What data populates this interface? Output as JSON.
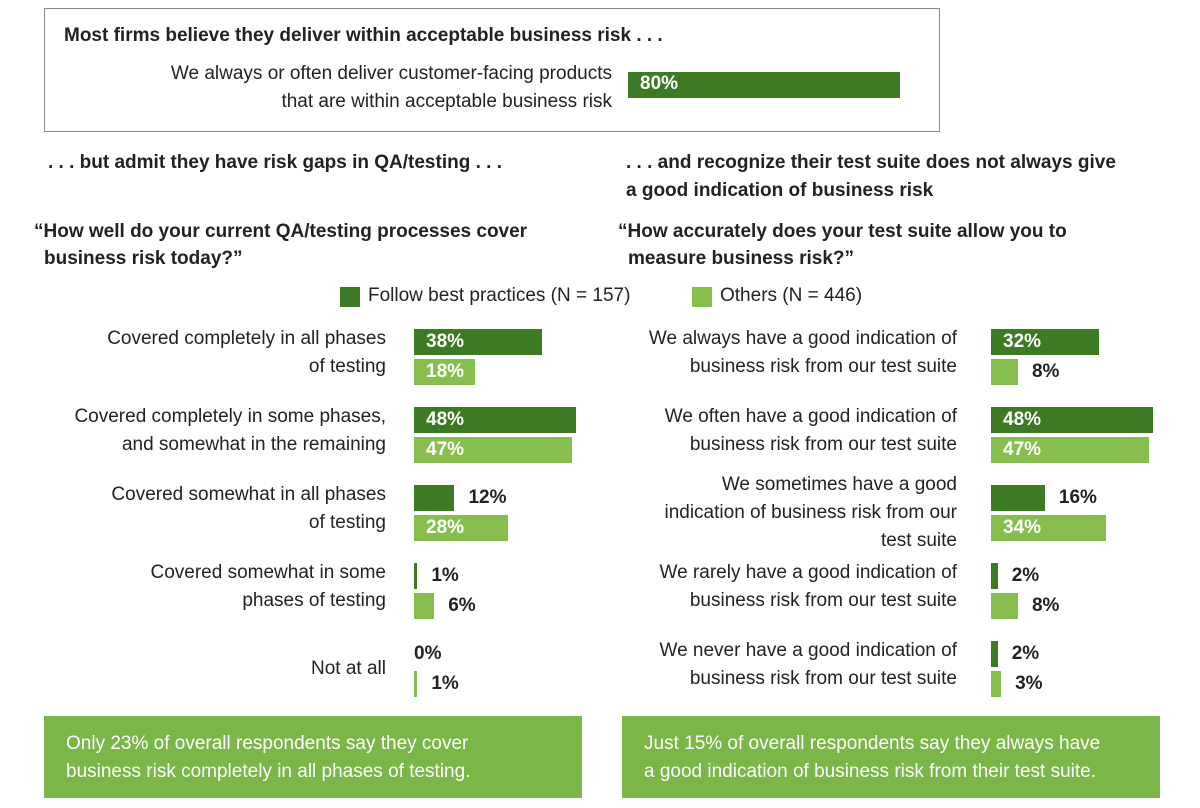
{
  "top": {
    "heading": "Most firms believe they deliver within acceptable business risk . . .",
    "label_line1": "We always or often deliver customer-facing products",
    "label_line2": "that are within acceptable business risk",
    "value_label": "80%"
  },
  "left": {
    "subheading": ". . . but admit they have risk gaps in QA/testing . . .",
    "question_line1": "“How well do your current QA/testing processes cover",
    "question_line2": "business risk today?”"
  },
  "right": {
    "subheading_line1": ". . . and recognize their test suite does not always give",
    "subheading_line2": "a good indication of business risk",
    "question_line1": "“How accurately does your test suite allow you to",
    "question_line2": "measure business risk?”"
  },
  "legend": {
    "best": "Follow best practices (N = 157)",
    "others": "Others (N = 446)"
  },
  "colors": {
    "best": "#3d7a24",
    "others": "#86bf4e",
    "callout": "#7ab648"
  },
  "callouts": {
    "left_line1": "Only 23% of overall respondents say they cover",
    "left_line2": "business risk completely in all phases of testing.",
    "right_line1": "Just 15% of overall respondents say they always have",
    "right_line2": "a good indication of business risk from their test suite."
  },
  "chart_data": [
    {
      "type": "bar",
      "orientation": "horizontal",
      "categories": [
        "We always or often deliver customer-facing products that are within acceptable business risk"
      ],
      "values": [
        80
      ]
    },
    {
      "type": "bar",
      "orientation": "horizontal",
      "categories": [
        [
          "Covered completely in all phases",
          "of testing"
        ],
        [
          "Covered completely in some phases,",
          "and somewhat in the remaining"
        ],
        [
          "Covered somewhat in all phases",
          "of testing"
        ],
        [
          "Covered somewhat in some",
          "phases of testing"
        ],
        [
          "Not at all"
        ]
      ],
      "series": [
        {
          "name": "Follow best practices (N = 157)",
          "values": [
            38,
            48,
            12,
            1,
            0
          ],
          "labels": [
            "38%",
            "48%",
            "12%",
            "1%",
            "0%"
          ]
        },
        {
          "name": "Others (N = 446)",
          "values": [
            18,
            47,
            28,
            6,
            1
          ],
          "labels": [
            "18%",
            "47%",
            "28%",
            "6%",
            "1%"
          ]
        }
      ]
    },
    {
      "type": "bar",
      "orientation": "horizontal",
      "categories": [
        [
          "We always have a good indication of",
          "business risk from our test suite"
        ],
        [
          "We often have a good indication of",
          "business risk from our test suite"
        ],
        [
          "We sometimes have a good",
          "indication of business risk from our",
          "test suite"
        ],
        [
          "We rarely have a good indication of",
          "business risk from our test suite"
        ],
        [
          "We never have a good indication of",
          "business risk from our test suite"
        ]
      ],
      "series": [
        {
          "name": "Follow best practices (N = 157)",
          "values": [
            32,
            48,
            16,
            2,
            2
          ],
          "labels": [
            "32%",
            "48%",
            "16%",
            "2%",
            "2%"
          ]
        },
        {
          "name": "Others (N = 446)",
          "values": [
            8,
            47,
            34,
            8,
            3
          ],
          "labels": [
            "8%",
            "47%",
            "34%",
            "8%",
            "3%"
          ]
        }
      ]
    }
  ]
}
